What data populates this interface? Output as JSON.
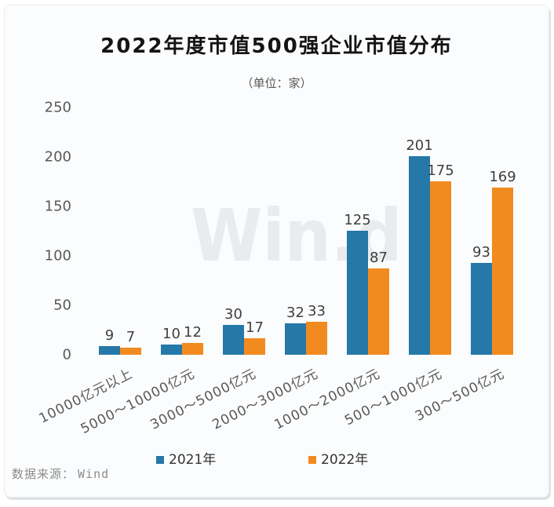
{
  "page": {
    "background": "#ffffff",
    "card_background": "#fbfcfd"
  },
  "chart_data": {
    "type": "bar",
    "title": "2022年度市值500强企业市值分布",
    "unit_label": "（单位：家）",
    "categories": [
      "10000亿元以上",
      "5000～10000亿元",
      "3000～5000亿元",
      "2000～3000亿元",
      "1000～2000亿元",
      "500～1000亿元",
      "300～500亿元"
    ],
    "series": [
      {
        "name": "2021年",
        "color": "#2578a8",
        "values": [
          9,
          10,
          30,
          32,
          125,
          201,
          93
        ]
      },
      {
        "name": "2022年",
        "color": "#f28b1f",
        "values": [
          7,
          12,
          17,
          33,
          87,
          175,
          169
        ]
      }
    ],
    "ylim": [
      0,
      250
    ],
    "yticks": [
      0,
      50,
      100,
      150,
      200,
      250
    ],
    "grid": false,
    "show_value_labels": true,
    "legend_position": "bottom",
    "value_label_color": "#3f3f3f",
    "axis_label_color": "#595959"
  },
  "watermark": "Win.d",
  "source": {
    "label": "数据来源：",
    "value": "Wind"
  }
}
